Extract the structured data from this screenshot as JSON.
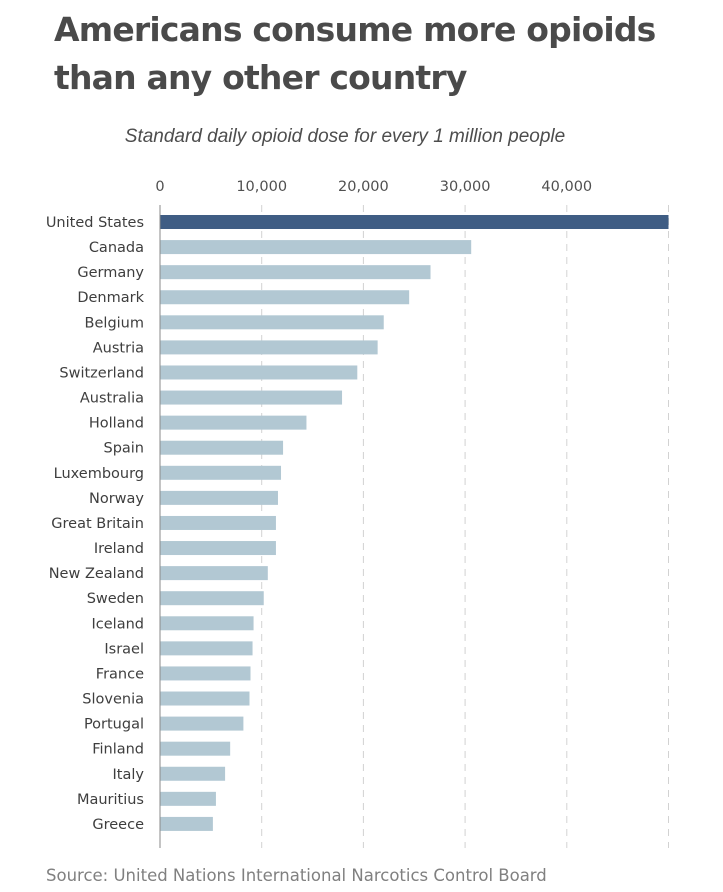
{
  "title_line1": "Americans consume more opioids",
  "title_line2": "than any other country",
  "source": "Source: United Nations International Narcotics Control Board",
  "chart_data": {
    "type": "bar",
    "orientation": "horizontal",
    "title": "Americans consume more opioids than any other country",
    "subtitle": "Standard daily opioid dose for every 1 million people",
    "xlabel": "",
    "ylabel": "",
    "xlim": [
      0,
      50000
    ],
    "xticks": [
      0,
      10000,
      20000,
      30000,
      40000
    ],
    "xtick_labels": [
      "0",
      "10,000",
      "20,000",
      "30,000",
      "40,000"
    ],
    "grid": true,
    "highlight_color": "#3f5d84",
    "bar_color": "#b2c8d3",
    "highlight_category": "United States",
    "categories": [
      "United States",
      "Canada",
      "Germany",
      "Denmark",
      "Belgium",
      "Austria",
      "Switzerland",
      "Australia",
      "Holland",
      "Spain",
      "Luxembourg",
      "Norway",
      "Great Britain",
      "Ireland",
      "New Zealand",
      "Sweden",
      "Iceland",
      "Israel",
      "France",
      "Slovenia",
      "Portugal",
      "Finland",
      "Italy",
      "Mauritius",
      "Greece"
    ],
    "values": [
      50000,
      30600,
      26600,
      24500,
      22000,
      21400,
      19400,
      17900,
      14400,
      12100,
      11900,
      11600,
      11400,
      11400,
      10600,
      10200,
      9200,
      9100,
      8900,
      8800,
      8200,
      6900,
      6400,
      5500,
      5200
    ]
  }
}
